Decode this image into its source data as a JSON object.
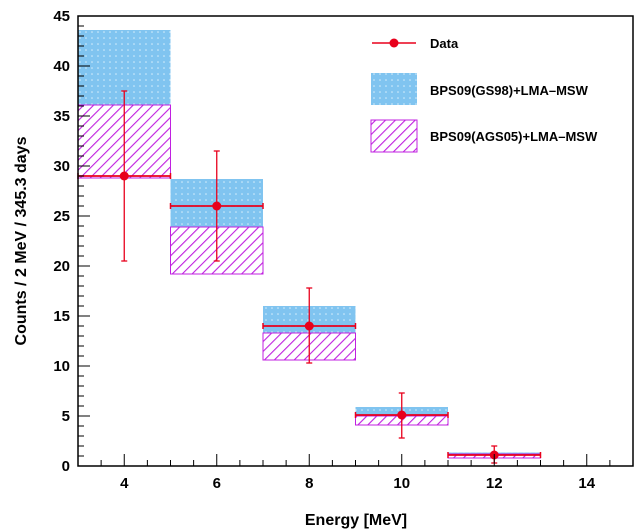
{
  "chart_data": {
    "type": "bar",
    "title": "",
    "xlabel": "Energy [MeV]",
    "ylabel": "Counts / 2 MeV / 345.3 days",
    "xlim": [
      3,
      15
    ],
    "ylim": [
      0,
      45
    ],
    "x_ticks": [
      4,
      6,
      8,
      10,
      12,
      14
    ],
    "y_ticks": [
      0,
      5,
      10,
      15,
      20,
      25,
      30,
      35,
      40,
      45
    ],
    "grid": false,
    "legend_position": "top-right",
    "bins": [
      {
        "x_low": 3,
        "x_high": 5
      },
      {
        "x_low": 5,
        "x_high": 7
      },
      {
        "x_low": 7,
        "x_high": 9
      },
      {
        "x_low": 9,
        "x_high": 11
      },
      {
        "x_low": 11,
        "x_high": 13
      }
    ],
    "series": [
      {
        "name": "Data",
        "kind": "points_with_errors",
        "color": "#e8001c",
        "points": [
          {
            "x": 4,
            "y": 29,
            "y_low": 20.5,
            "y_high": 37.5
          },
          {
            "x": 6,
            "y": 26,
            "y_low": 20.5,
            "y_high": 31.5
          },
          {
            "x": 8,
            "y": 14,
            "y_low": 10.3,
            "y_high": 17.8
          },
          {
            "x": 10,
            "y": 5.1,
            "y_low": 2.8,
            "y_high": 7.3
          },
          {
            "x": 12,
            "y": 1.1,
            "y_low": 0.3,
            "y_high": 2.0
          }
        ]
      },
      {
        "name": "BPS09(GS98)+LMA–MSW",
        "kind": "band",
        "color": "#80c4f0",
        "bands": [
          {
            "y_low": 34.8,
            "y_high": 43.6
          },
          {
            "y_low": 23.8,
            "y_high": 28.7
          },
          {
            "y_low": 13.1,
            "y_high": 16.0
          },
          {
            "y_low": 5.0,
            "y_high": 5.9
          },
          {
            "y_low": 1.0,
            "y_high": 1.35
          }
        ]
      },
      {
        "name": "BPS09(AGS05)+LMA–MSW",
        "kind": "band",
        "color": "#c020e0",
        "bands": [
          {
            "y_low": 28.8,
            "y_high": 36.1
          },
          {
            "y_low": 19.2,
            "y_high": 23.9
          },
          {
            "y_low": 10.6,
            "y_high": 13.3
          },
          {
            "y_low": 4.1,
            "y_high": 5.0
          },
          {
            "y_low": 0.8,
            "y_high": 1.2
          }
        ]
      }
    ]
  }
}
